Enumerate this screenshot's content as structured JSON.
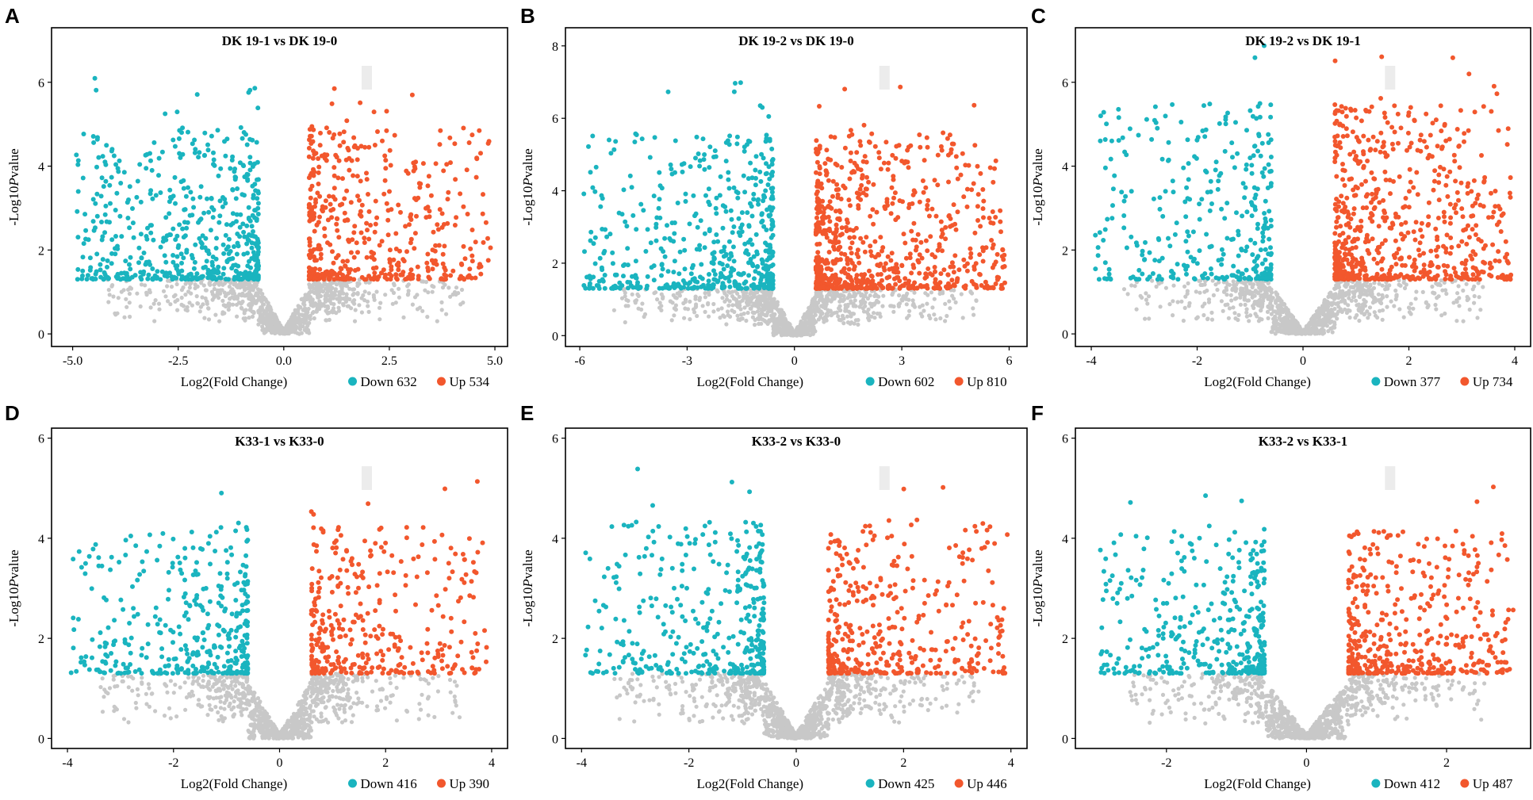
{
  "figure": {
    "description_free": true
  },
  "colors": {
    "down": "#1ab4bf",
    "up": "#f2572d",
    "ns": "#c8c8c8",
    "shadow": "#ececec",
    "frame": "#000000"
  },
  "chart_data": [
    {
      "letter": "A",
      "type": "scatter",
      "title": "DK 19-1 vs DK 19-0",
      "xlabel": "Log2(Fold Change)",
      "ylabel_prefix": "-Log10",
      "ylabel_italic": "P",
      "ylabel_suffix": "value",
      "xlim": [
        -5.5,
        5.3
      ],
      "ylim": [
        -0.3,
        7.3
      ],
      "xticks": [
        -5.0,
        -2.5,
        0.0,
        2.5,
        5.0
      ],
      "xtick_labels": [
        "-5.0",
        "-2.5",
        "0.0",
        "2.5",
        "5.0"
      ],
      "yticks": [
        0,
        2,
        4,
        6
      ],
      "ytick_labels": [
        "0",
        "2",
        "4",
        "6"
      ],
      "down_count": 632,
      "up_count": 534,
      "legend_down": "Down 632",
      "legend_up": "Up 534",
      "x_spread": 5.0,
      "fc_threshold": 0.6,
      "p_threshold": 1.3,
      "y_peak": 6.2,
      "seed": 11
    },
    {
      "letter": "B",
      "type": "scatter",
      "title": "DK 19-2 vs DK 19-0",
      "xlabel": "Log2(Fold Change)",
      "ylabel_prefix": "-Log10",
      "ylabel_italic": "P",
      "ylabel_suffix": "value",
      "xlim": [
        -6.4,
        6.5
      ],
      "ylim": [
        -0.3,
        8.5
      ],
      "xticks": [
        -6,
        -3,
        0,
        3,
        6
      ],
      "xtick_labels": [
        "-6",
        "-3",
        "0",
        "3",
        "6"
      ],
      "yticks": [
        0,
        2,
        4,
        6,
        8
      ],
      "ytick_labels": [
        "0",
        "2",
        "4",
        "6",
        "8"
      ],
      "down_count": 602,
      "up_count": 810,
      "legend_down": "Down 602",
      "legend_up": "Up 810",
      "x_spread": 6.0,
      "fc_threshold": 0.6,
      "p_threshold": 1.3,
      "y_peak": 7.0,
      "seed": 23
    },
    {
      "letter": "C",
      "type": "scatter",
      "title": "DK 19-2 vs DK 19-1",
      "xlabel": "Log2(Fold Change)",
      "ylabel_prefix": "-Log10",
      "ylabel_italic": "P",
      "ylabel_suffix": "value",
      "xlim": [
        -4.3,
        4.3
      ],
      "ylim": [
        -0.3,
        7.3
      ],
      "xticks": [
        -4,
        -2,
        0,
        2,
        4
      ],
      "xtick_labels": [
        "-4",
        "-2",
        "0",
        "2",
        "4"
      ],
      "yticks": [
        0,
        2,
        4,
        6
      ],
      "ytick_labels": [
        "0",
        "2",
        "4",
        "6"
      ],
      "down_count": 377,
      "up_count": 734,
      "legend_down": "Down 377",
      "legend_up": "Up 734",
      "x_spread": 4.0,
      "fc_threshold": 0.6,
      "p_threshold": 1.3,
      "y_peak": 6.9,
      "seed": 37
    },
    {
      "letter": "D",
      "type": "scatter",
      "title": "K33-1 vs K33-0",
      "xlabel": "Log2(Fold Change)",
      "ylabel_prefix": "-Log10",
      "ylabel_italic": "P",
      "ylabel_suffix": "value",
      "xlim": [
        -4.3,
        4.3
      ],
      "ylim": [
        -0.2,
        6.2
      ],
      "xticks": [
        -4,
        -2,
        0,
        2,
        4
      ],
      "xtick_labels": [
        "-4",
        "-2",
        "0",
        "2",
        "4"
      ],
      "yticks": [
        0,
        2,
        4,
        6
      ],
      "ytick_labels": [
        "0",
        "2",
        "4",
        "6"
      ],
      "down_count": 416,
      "up_count": 390,
      "legend_down": "Down 416",
      "legend_up": "Up 390",
      "x_spread": 4.0,
      "fc_threshold": 0.6,
      "p_threshold": 1.3,
      "y_peak": 5.2,
      "seed": 41
    },
    {
      "letter": "E",
      "type": "scatter",
      "title": "K33-2 vs K33-0",
      "xlabel": "Log2(Fold Change)",
      "ylabel_prefix": "-Log10",
      "ylabel_italic": "P",
      "ylabel_suffix": "value",
      "xlim": [
        -4.3,
        4.3
      ],
      "ylim": [
        -0.2,
        6.2
      ],
      "xticks": [
        -4,
        -2,
        0,
        2,
        4
      ],
      "xtick_labels": [
        "-4",
        "-2",
        "0",
        "2",
        "4"
      ],
      "yticks": [
        0,
        2,
        4,
        6
      ],
      "ytick_labels": [
        "0",
        "2",
        "4",
        "6"
      ],
      "down_count": 425,
      "up_count": 446,
      "legend_down": "Down 425",
      "legend_up": "Up 446",
      "x_spread": 4.0,
      "fc_threshold": 0.6,
      "p_threshold": 1.3,
      "y_peak": 5.4,
      "seed": 53
    },
    {
      "letter": "F",
      "type": "scatter",
      "title": "K33-2 vs K33-1",
      "xlabel": "Log2(Fold Change)",
      "ylabel_prefix": "-Log10",
      "ylabel_italic": "P",
      "ylabel_suffix": "value",
      "xlim": [
        -3.3,
        3.2
      ],
      "ylim": [
        -0.2,
        6.2
      ],
      "xticks": [
        -2,
        0,
        2
      ],
      "xtick_labels": [
        "-2",
        "0",
        "2"
      ],
      "yticks": [
        0,
        2,
        4,
        6
      ],
      "ytick_labels": [
        "0",
        "2",
        "4",
        "6"
      ],
      "down_count": 412,
      "up_count": 487,
      "legend_down": "Down 412",
      "legend_up": "Up 487",
      "x_spread": 3.0,
      "fc_threshold": 0.6,
      "p_threshold": 1.3,
      "y_peak": 5.1,
      "seed": 67
    }
  ]
}
